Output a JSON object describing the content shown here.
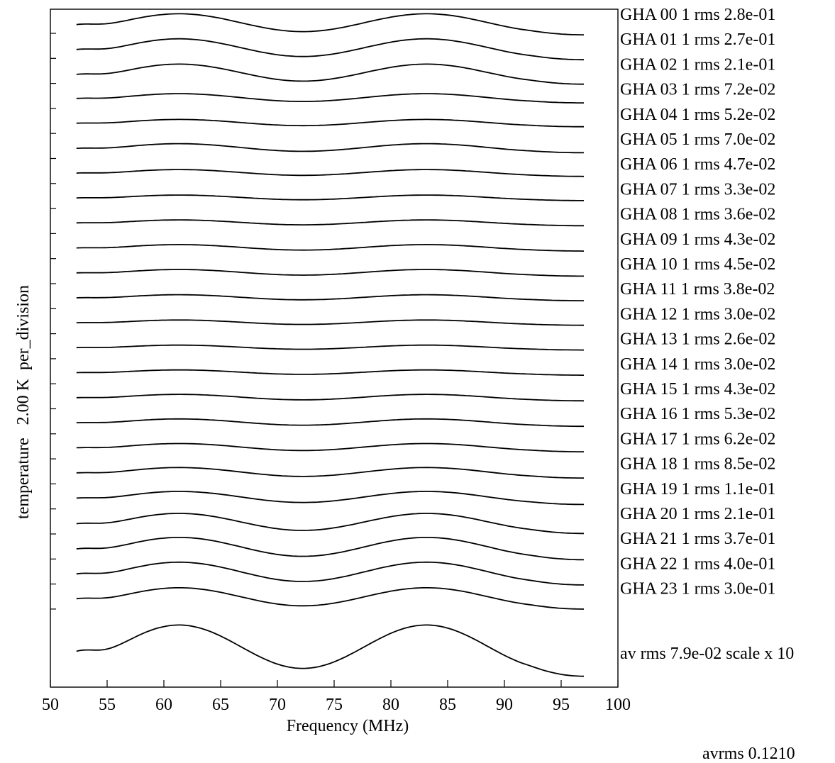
{
  "chart_data": {
    "type": "line",
    "xlabel": "Frequency (MHz)",
    "ylabel": "temperature   2.00 K  per_division",
    "xlim": [
      50,
      100
    ],
    "x_ticks": [
      "50",
      "55",
      "60",
      "65",
      "70",
      "75",
      "80",
      "85",
      "90",
      "95",
      "100"
    ],
    "x_range": [
      52.3,
      97
    ],
    "grid": false,
    "y_divisions": 24,
    "series": [
      {
        "name": "GHA 00 1 rms 2.8e-01",
        "amp": 0.28
      },
      {
        "name": "GHA 01 1 rms 2.7e-01",
        "amp": 0.27
      },
      {
        "name": "GHA 02 1 rms 2.1e-01",
        "amp": 0.21
      },
      {
        "name": "GHA 03 1 rms 7.2e-02",
        "amp": 0.072
      },
      {
        "name": "GHA 04 1 rms 5.2e-02",
        "amp": 0.052
      },
      {
        "name": "GHA 05 1 rms 7.0e-02",
        "amp": 0.07
      },
      {
        "name": "GHA 06 1 rms 4.7e-02",
        "amp": 0.047
      },
      {
        "name": "GHA 07 1 rms 3.3e-02",
        "amp": 0.033
      },
      {
        "name": "GHA 08 1 rms 3.6e-02",
        "amp": 0.036
      },
      {
        "name": "GHA 09 1 rms 4.3e-02",
        "amp": 0.043
      },
      {
        "name": "GHA 10 1 rms 4.5e-02",
        "amp": 0.045
      },
      {
        "name": "GHA 11 1 rms 3.8e-02",
        "amp": 0.038
      },
      {
        "name": "GHA 12 1 rms 3.0e-02",
        "amp": 0.03
      },
      {
        "name": "GHA 13 1 rms 2.6e-02",
        "amp": 0.026
      },
      {
        "name": "GHA 14 1 rms 3.0e-02",
        "amp": 0.03
      },
      {
        "name": "GHA 15 1 rms 4.3e-02",
        "amp": 0.043
      },
      {
        "name": "GHA 16 1 rms 5.3e-02",
        "amp": 0.053
      },
      {
        "name": "GHA 17 1 rms 6.2e-02",
        "amp": 0.062
      },
      {
        "name": "GHA 18 1 rms 8.5e-02",
        "amp": 0.085
      },
      {
        "name": "GHA 19 1 rms 1.1e-01",
        "amp": 0.11
      },
      {
        "name": "GHA 20 1 rms 2.1e-01",
        "amp": 0.21
      },
      {
        "name": "GHA 21 1 rms 3.7e-01",
        "amp": 0.37
      },
      {
        "name": "GHA 22 1 rms 4.0e-01",
        "amp": 0.4
      },
      {
        "name": "GHA 23 1 rms 3.0e-01",
        "amp": 0.3
      },
      {
        "name": "av  rms 7.9e-02 scale x 10",
        "amp": 0.79
      }
    ],
    "footer": "avrms 0.1210"
  }
}
